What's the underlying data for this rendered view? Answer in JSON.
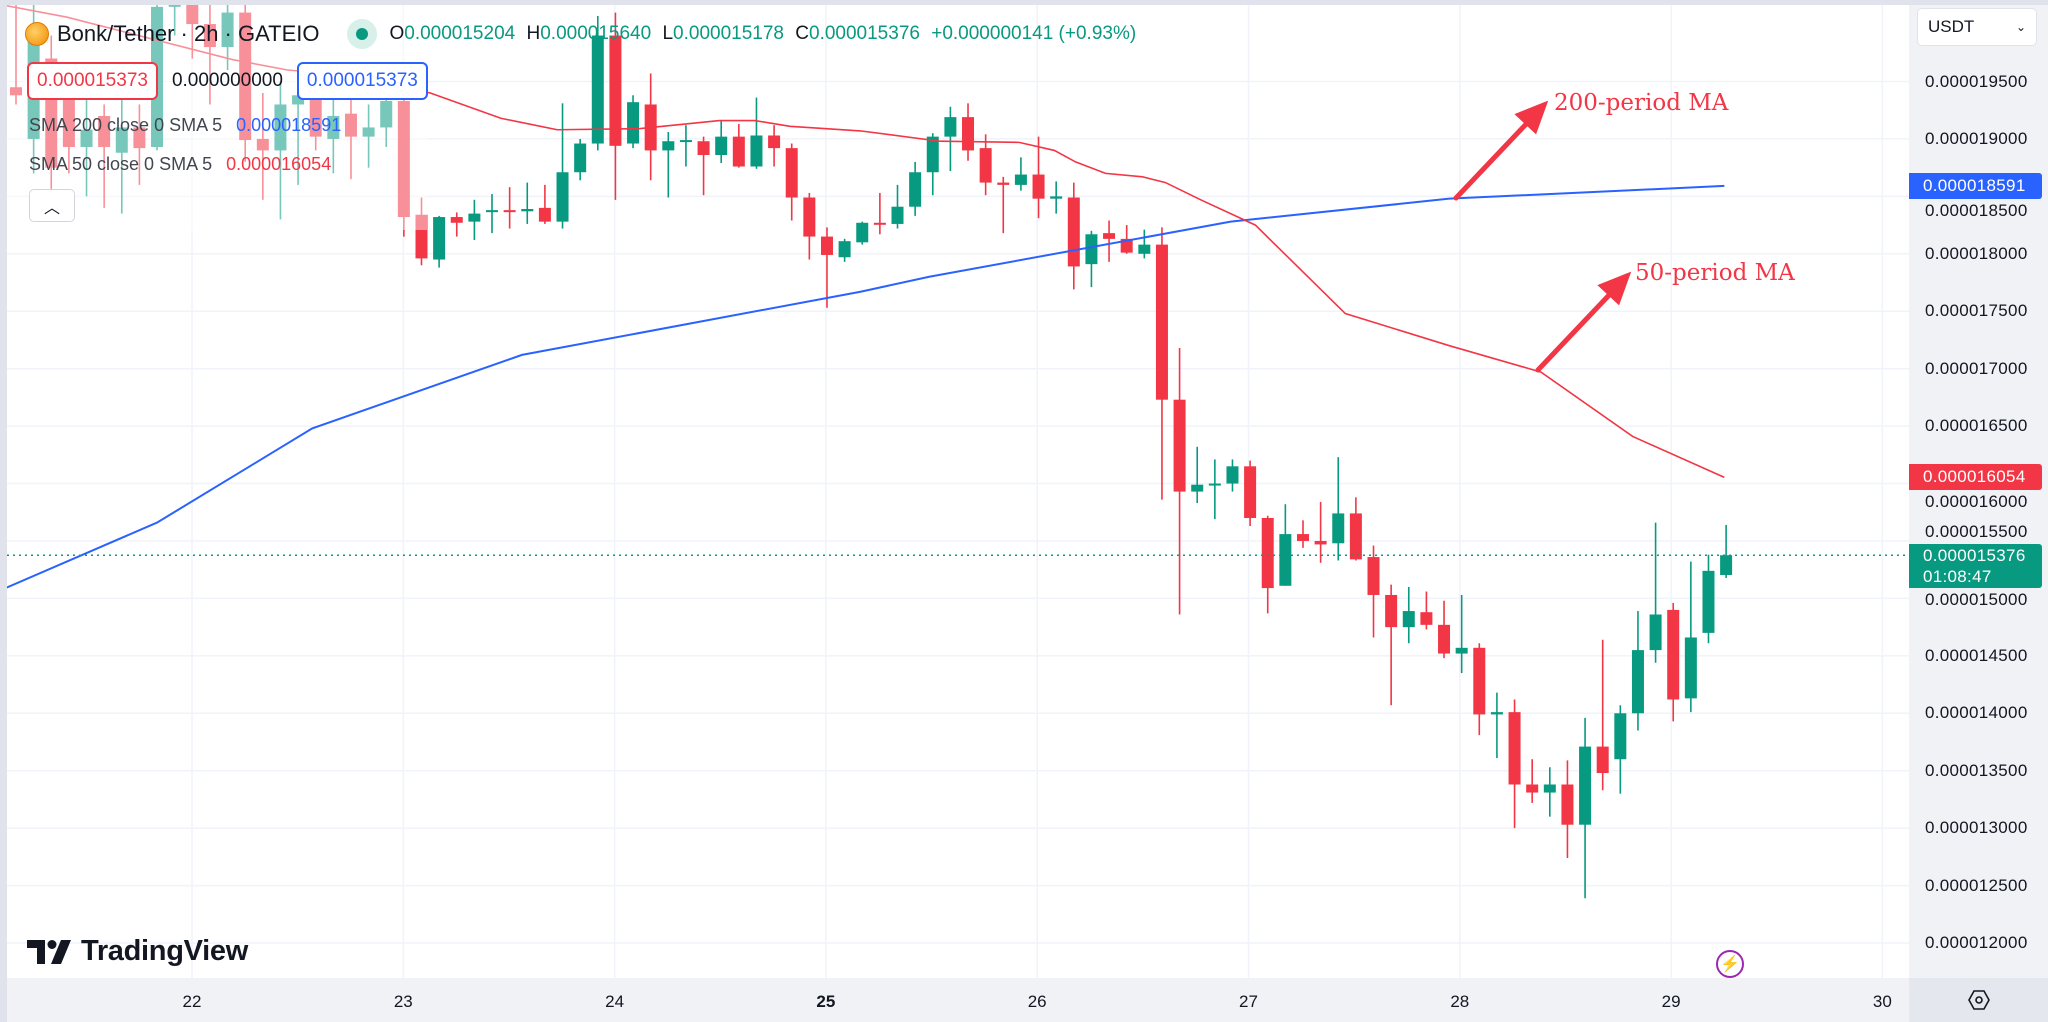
{
  "legend": {
    "symbol_title": "Bonk/Tether · 2h · GATEIO",
    "ohlc": {
      "o_label": "O",
      "o": "0.000015204",
      "h_label": "H",
      "h": "0.000015640",
      "l_label": "L",
      "l": "0.000015178",
      "c_label": "C",
      "c": "0.000015376",
      "change": "+0.000000141 (+0.93%)"
    },
    "price_box_red": "0.000015373",
    "spread": "0.000000000",
    "price_box_blue": "0.000015373",
    "sma200_label": "SMA 200 close 0 SMA 5",
    "sma200_value": "0.000018591",
    "sma50_label": "SMA 50 close 0 SMA 5",
    "sma50_value": "0.000016054",
    "collapse_icon": "chevron-up-icon"
  },
  "currency_select": "USDT",
  "price_axis": {
    "ticks": [
      "0.000019500",
      "0.000019000",
      "0.000018500",
      "0.000018000",
      "0.000017500",
      "0.000017000",
      "0.000016500",
      "0.000016000",
      "0.000015500",
      "0.000015000",
      "0.000014500",
      "0.000014000",
      "0.000013500",
      "0.000013000",
      "0.000012500",
      "0.000012000"
    ],
    "sma200_tag": "0.000018591",
    "sma50_tag": "0.000016054",
    "last_price_tag": "0.000015376",
    "countdown": "01:08:47"
  },
  "time_axis": {
    "ticks": [
      "22",
      "23",
      "24",
      "25",
      "26",
      "27",
      "28",
      "29",
      "30"
    ]
  },
  "annotations": {
    "ma200": "200-period MA",
    "ma50": "50-period MA"
  },
  "branding": {
    "logo_text": "TradingView"
  },
  "colors": {
    "up": "#089981",
    "down": "#f23645",
    "sma200": "#2962ff",
    "sma50": "#f23645",
    "annotation": "#f23645"
  },
  "chart_data": {
    "type": "candlestick",
    "ylim": [
      1.17e-05,
      2.04e-05
    ],
    "grid": true,
    "last_price": 1.5376e-05,
    "candles_ohlc": [
      [
        1.945e-05,
        2.02e-05,
        1.93e-05,
        1.938e-05
      ],
      [
        1.9e-05,
        2.04e-05,
        1.87e-05,
        1.99e-05
      ],
      [
        1.97e-05,
        1.99e-05,
        1.85e-05,
        1.875e-05
      ],
      [
        1.936e-05,
        1.96e-05,
        1.87e-05,
        1.893e-05
      ],
      [
        1.893e-05,
        1.94e-05,
        1.85e-05,
        1.908e-05
      ],
      [
        1.92e-05,
        1.93e-05,
        1.84e-05,
        1.893e-05
      ],
      [
        1.888e-05,
        1.95e-05,
        1.835e-05,
        1.91e-05
      ],
      [
        1.91e-05,
        1.93e-05,
        1.86e-05,
        1.892e-05
      ],
      [
        1.893e-05,
        2.03e-05,
        1.89e-05,
        2.015e-05
      ],
      [
        2.015e-05,
        2.05e-05,
        1.99e-05,
        2.03e-05
      ],
      [
        2.03e-05,
        2.05e-05,
        1.97e-05,
        2e-05
      ],
      [
        2e-05,
        2.03e-05,
        1.93e-05,
        1.98e-05
      ],
      [
        1.98e-05,
        2.03e-05,
        1.96e-05,
        2.01e-05
      ],
      [
        2.01e-05,
        2.03e-05,
        1.88e-05,
        1.899e-05
      ],
      [
        1.9e-05,
        1.94e-05,
        1.847e-05,
        1.89e-05
      ],
      [
        1.89e-05,
        1.95e-05,
        1.83e-05,
        1.93e-05
      ],
      [
        1.93e-05,
        1.95e-05,
        1.86e-05,
        1.938e-05
      ],
      [
        1.938e-05,
        1.955e-05,
        1.89e-05,
        1.902e-05
      ],
      [
        1.9e-05,
        1.95e-05,
        1.87e-05,
        1.92e-05
      ],
      [
        1.922e-05,
        1.94e-05,
        1.865e-05,
        1.902e-05
      ],
      [
        1.902e-05,
        1.93e-05,
        1.875e-05,
        1.91e-05
      ],
      [
        1.91e-05,
        1.95e-05,
        1.893e-05,
        1.933e-05
      ],
      [
        1.933e-05,
        1.945e-05,
        1.815e-05,
        1.832e-05
      ],
      [
        1.834e-05,
        1.849e-05,
        1.79e-05,
        1.796e-05
      ],
      [
        1.795e-05,
        1.833e-05,
        1.788e-05,
        1.832e-05
      ],
      [
        1.832e-05,
        1.836e-05,
        1.815e-05,
        1.827e-05
      ],
      [
        1.828e-05,
        1.847e-05,
        1.812e-05,
        1.835e-05
      ],
      [
        1.837e-05,
        1.852e-05,
        1.818e-05,
        1.838e-05
      ],
      [
        1.838e-05,
        1.858e-05,
        1.822e-05,
        1.837e-05
      ],
      [
        1.837e-05,
        1.862e-05,
        1.826e-05,
        1.839e-05
      ],
      [
        1.84e-05,
        1.86e-05,
        1.826e-05,
        1.828e-05
      ],
      [
        1.828e-05,
        1.931e-05,
        1.822e-05,
        1.871e-05
      ],
      [
        1.871e-05,
        1.9e-05,
        1.864e-05,
        1.896e-05
      ],
      [
        1.896e-05,
        2.007e-05,
        1.89e-05,
        1.99e-05
      ],
      [
        1.99e-05,
        2.01e-05,
        1.847e-05,
        1.894e-05
      ],
      [
        1.896e-05,
        1.938e-05,
        1.892e-05,
        1.932e-05
      ],
      [
        1.93e-05,
        1.957e-05,
        1.864e-05,
        1.89e-05
      ],
      [
        1.89e-05,
        1.906e-05,
        1.849e-05,
        1.898e-05
      ],
      [
        1.898e-05,
        1.912e-05,
        1.876e-05,
        1.899e-05
      ],
      [
        1.898e-05,
        1.902e-05,
        1.851e-05,
        1.886e-05
      ],
      [
        1.886e-05,
        1.916e-05,
        1.879e-05,
        1.902e-05
      ],
      [
        1.902e-05,
        1.913e-05,
        1.875e-05,
        1.876e-05
      ],
      [
        1.876e-05,
        1.936e-05,
        1.874e-05,
        1.903e-05
      ],
      [
        1.903e-05,
        1.912e-05,
        1.876e-05,
        1.892e-05
      ],
      [
        1.892e-05,
        1.896e-05,
        1.829e-05,
        1.849e-05
      ],
      [
        1.849e-05,
        1.853e-05,
        1.795e-05,
        1.815e-05
      ],
      [
        1.815e-05,
        1.823e-05,
        1.753e-05,
        1.799e-05
      ],
      [
        1.797e-05,
        1.813e-05,
        1.793e-05,
        1.811e-05
      ],
      [
        1.81e-05,
        1.828e-05,
        1.808e-05,
        1.827e-05
      ],
      [
        1.827e-05,
        1.853e-05,
        1.817e-05,
        1.826e-05
      ],
      [
        1.826e-05,
        1.86e-05,
        1.822e-05,
        1.841e-05
      ],
      [
        1.841e-05,
        1.88e-05,
        1.833e-05,
        1.871e-05
      ],
      [
        1.871e-05,
        1.905e-05,
        1.851e-05,
        1.902e-05
      ],
      [
        1.902e-05,
        1.928e-05,
        1.872e-05,
        1.919e-05
      ],
      [
        1.919e-05,
        1.931e-05,
        1.881e-05,
        1.89e-05
      ],
      [
        1.892e-05,
        1.904e-05,
        1.851e-05,
        1.862e-05
      ],
      [
        1.862e-05,
        1.867e-05,
        1.818e-05,
        1.86e-05
      ],
      [
        1.86e-05,
        1.884e-05,
        1.855e-05,
        1.869e-05
      ],
      [
        1.869e-05,
        1.902e-05,
        1.831e-05,
        1.848e-05
      ],
      [
        1.848e-05,
        1.863e-05,
        1.835e-05,
        1.85e-05
      ],
      [
        1.849e-05,
        1.862e-05,
        1.769e-05,
        1.789e-05
      ],
      [
        1.791e-05,
        1.82e-05,
        1.771e-05,
        1.817e-05
      ],
      [
        1.818e-05,
        1.829e-05,
        1.793e-05,
        1.813e-05
      ],
      [
        1.813e-05,
        1.825e-05,
        1.8e-05,
        1.801e-05
      ],
      [
        1.8e-05,
        1.821e-05,
        1.796e-05,
        1.808e-05
      ],
      [
        1.808e-05,
        1.823e-05,
        1.586e-05,
        1.673e-05
      ],
      [
        1.673e-05,
        1.718e-05,
        1.486e-05,
        1.593e-05
      ],
      [
        1.593e-05,
        1.632e-05,
        1.583e-05,
        1.599e-05
      ],
      [
        1.599e-05,
        1.621e-05,
        1.569e-05,
        1.6e-05
      ],
      [
        1.6e-05,
        1.621e-05,
        1.593e-05,
        1.615e-05
      ],
      [
        1.615e-05,
        1.62e-05,
        1.563e-05,
        1.57e-05
      ],
      [
        1.57e-05,
        1.572e-05,
        1.487e-05,
        1.509e-05
      ],
      [
        1.511e-05,
        1.582e-05,
        1.511e-05,
        1.556e-05
      ],
      [
        1.556e-05,
        1.568e-05,
        1.544e-05,
        1.55e-05
      ],
      [
        1.55e-05,
        1.584e-05,
        1.531e-05,
        1.547e-05
      ],
      [
        1.548e-05,
        1.623e-05,
        1.533e-05,
        1.574e-05
      ],
      [
        1.574e-05,
        1.588e-05,
        1.533e-05,
        1.534e-05
      ],
      [
        1.536e-05,
        1.546e-05,
        1.466e-05,
        1.503e-05
      ],
      [
        1.503e-05,
        1.512e-05,
        1.407e-05,
        1.475e-05
      ],
      [
        1.475e-05,
        1.51e-05,
        1.461e-05,
        1.489e-05
      ],
      [
        1.488e-05,
        1.506e-05,
        1.473e-05,
        1.477e-05
      ],
      [
        1.477e-05,
        1.498e-05,
        1.448e-05,
        1.452e-05
      ],
      [
        1.452e-05,
        1.503e-05,
        1.435e-05,
        1.457e-05
      ],
      [
        1.457e-05,
        1.461e-05,
        1.381e-05,
        1.399e-05
      ],
      [
        1.399e-05,
        1.418e-05,
        1.361e-05,
        1.401e-05
      ],
      [
        1.401e-05,
        1.412e-05,
        1.3e-05,
        1.338e-05
      ],
      [
        1.338e-05,
        1.36e-05,
        1.322e-05,
        1.331e-05
      ],
      [
        1.331e-05,
        1.353e-05,
        1.31e-05,
        1.338e-05
      ],
      [
        1.338e-05,
        1.359e-05,
        1.274e-05,
        1.303e-05
      ],
      [
        1.303e-05,
        1.396e-05,
        1.239e-05,
        1.371e-05
      ],
      [
        1.371e-05,
        1.464e-05,
        1.333e-05,
        1.348e-05
      ],
      [
        1.36e-05,
        1.407e-05,
        1.33e-05,
        1.4e-05
      ],
      [
        1.4e-05,
        1.489e-05,
        1.385e-05,
        1.455e-05
      ],
      [
        1.455e-05,
        1.566e-05,
        1.444e-05,
        1.486e-05
      ],
      [
        1.49e-05,
        1.496e-05,
        1.393e-05,
        1.412e-05
      ],
      [
        1.413e-05,
        1.532e-05,
        1.401e-05,
        1.466e-05
      ],
      [
        1.47e-05,
        1.538e-05,
        1.461e-05,
        1.524e-05
      ],
      [
        1.5204e-05,
        1.564e-05,
        1.5178e-05,
        1.5376e-05
      ]
    ],
    "sma200": [
      [
        -0.9,
        1.507e-05
      ],
      [
        8,
        1.566e-05
      ],
      [
        16.8,
        1.648e-05
      ],
      [
        28.7,
        1.712e-05
      ],
      [
        47.9,
        1.767e-05
      ],
      [
        51.8,
        1.78e-05
      ],
      [
        68.9,
        1.828e-05
      ],
      [
        81.3,
        1.848e-05
      ],
      [
        96.9,
        1.8591e-05
      ]
    ],
    "sma50": [
      [
        -0.9,
        2.017e-05
      ],
      [
        2.9,
        2.006e-05
      ],
      [
        12.3,
        1.969e-05
      ],
      [
        15.4,
        1.96e-05
      ],
      [
        18.4,
        1.956e-05
      ],
      [
        23.5,
        1.94e-05
      ],
      [
        27.5,
        1.918e-05
      ],
      [
        30.7,
        1.908e-05
      ],
      [
        35.4,
        1.909e-05
      ],
      [
        39.9,
        1.916e-05
      ],
      [
        41.9,
        1.916e-05
      ],
      [
        43.9,
        1.911e-05
      ],
      [
        47.9,
        1.907e-05
      ],
      [
        52.4,
        1.898e-05
      ],
      [
        56.9,
        1.897e-05
      ],
      [
        58.9,
        1.89e-05
      ],
      [
        60.1,
        1.88e-05
      ],
      [
        61.8,
        1.87e-05
      ],
      [
        63.9,
        1.867e-05
      ],
      [
        65.2,
        1.862e-05
      ],
      [
        67.2,
        1.847e-05
      ],
      [
        70.3,
        1.825e-05
      ],
      [
        75.4,
        1.748e-05
      ],
      [
        81.3,
        1.72e-05
      ],
      [
        86.5,
        1.697e-05
      ],
      [
        91.7,
        1.641e-05
      ],
      [
        96.9,
        1.6054e-05
      ]
    ]
  }
}
